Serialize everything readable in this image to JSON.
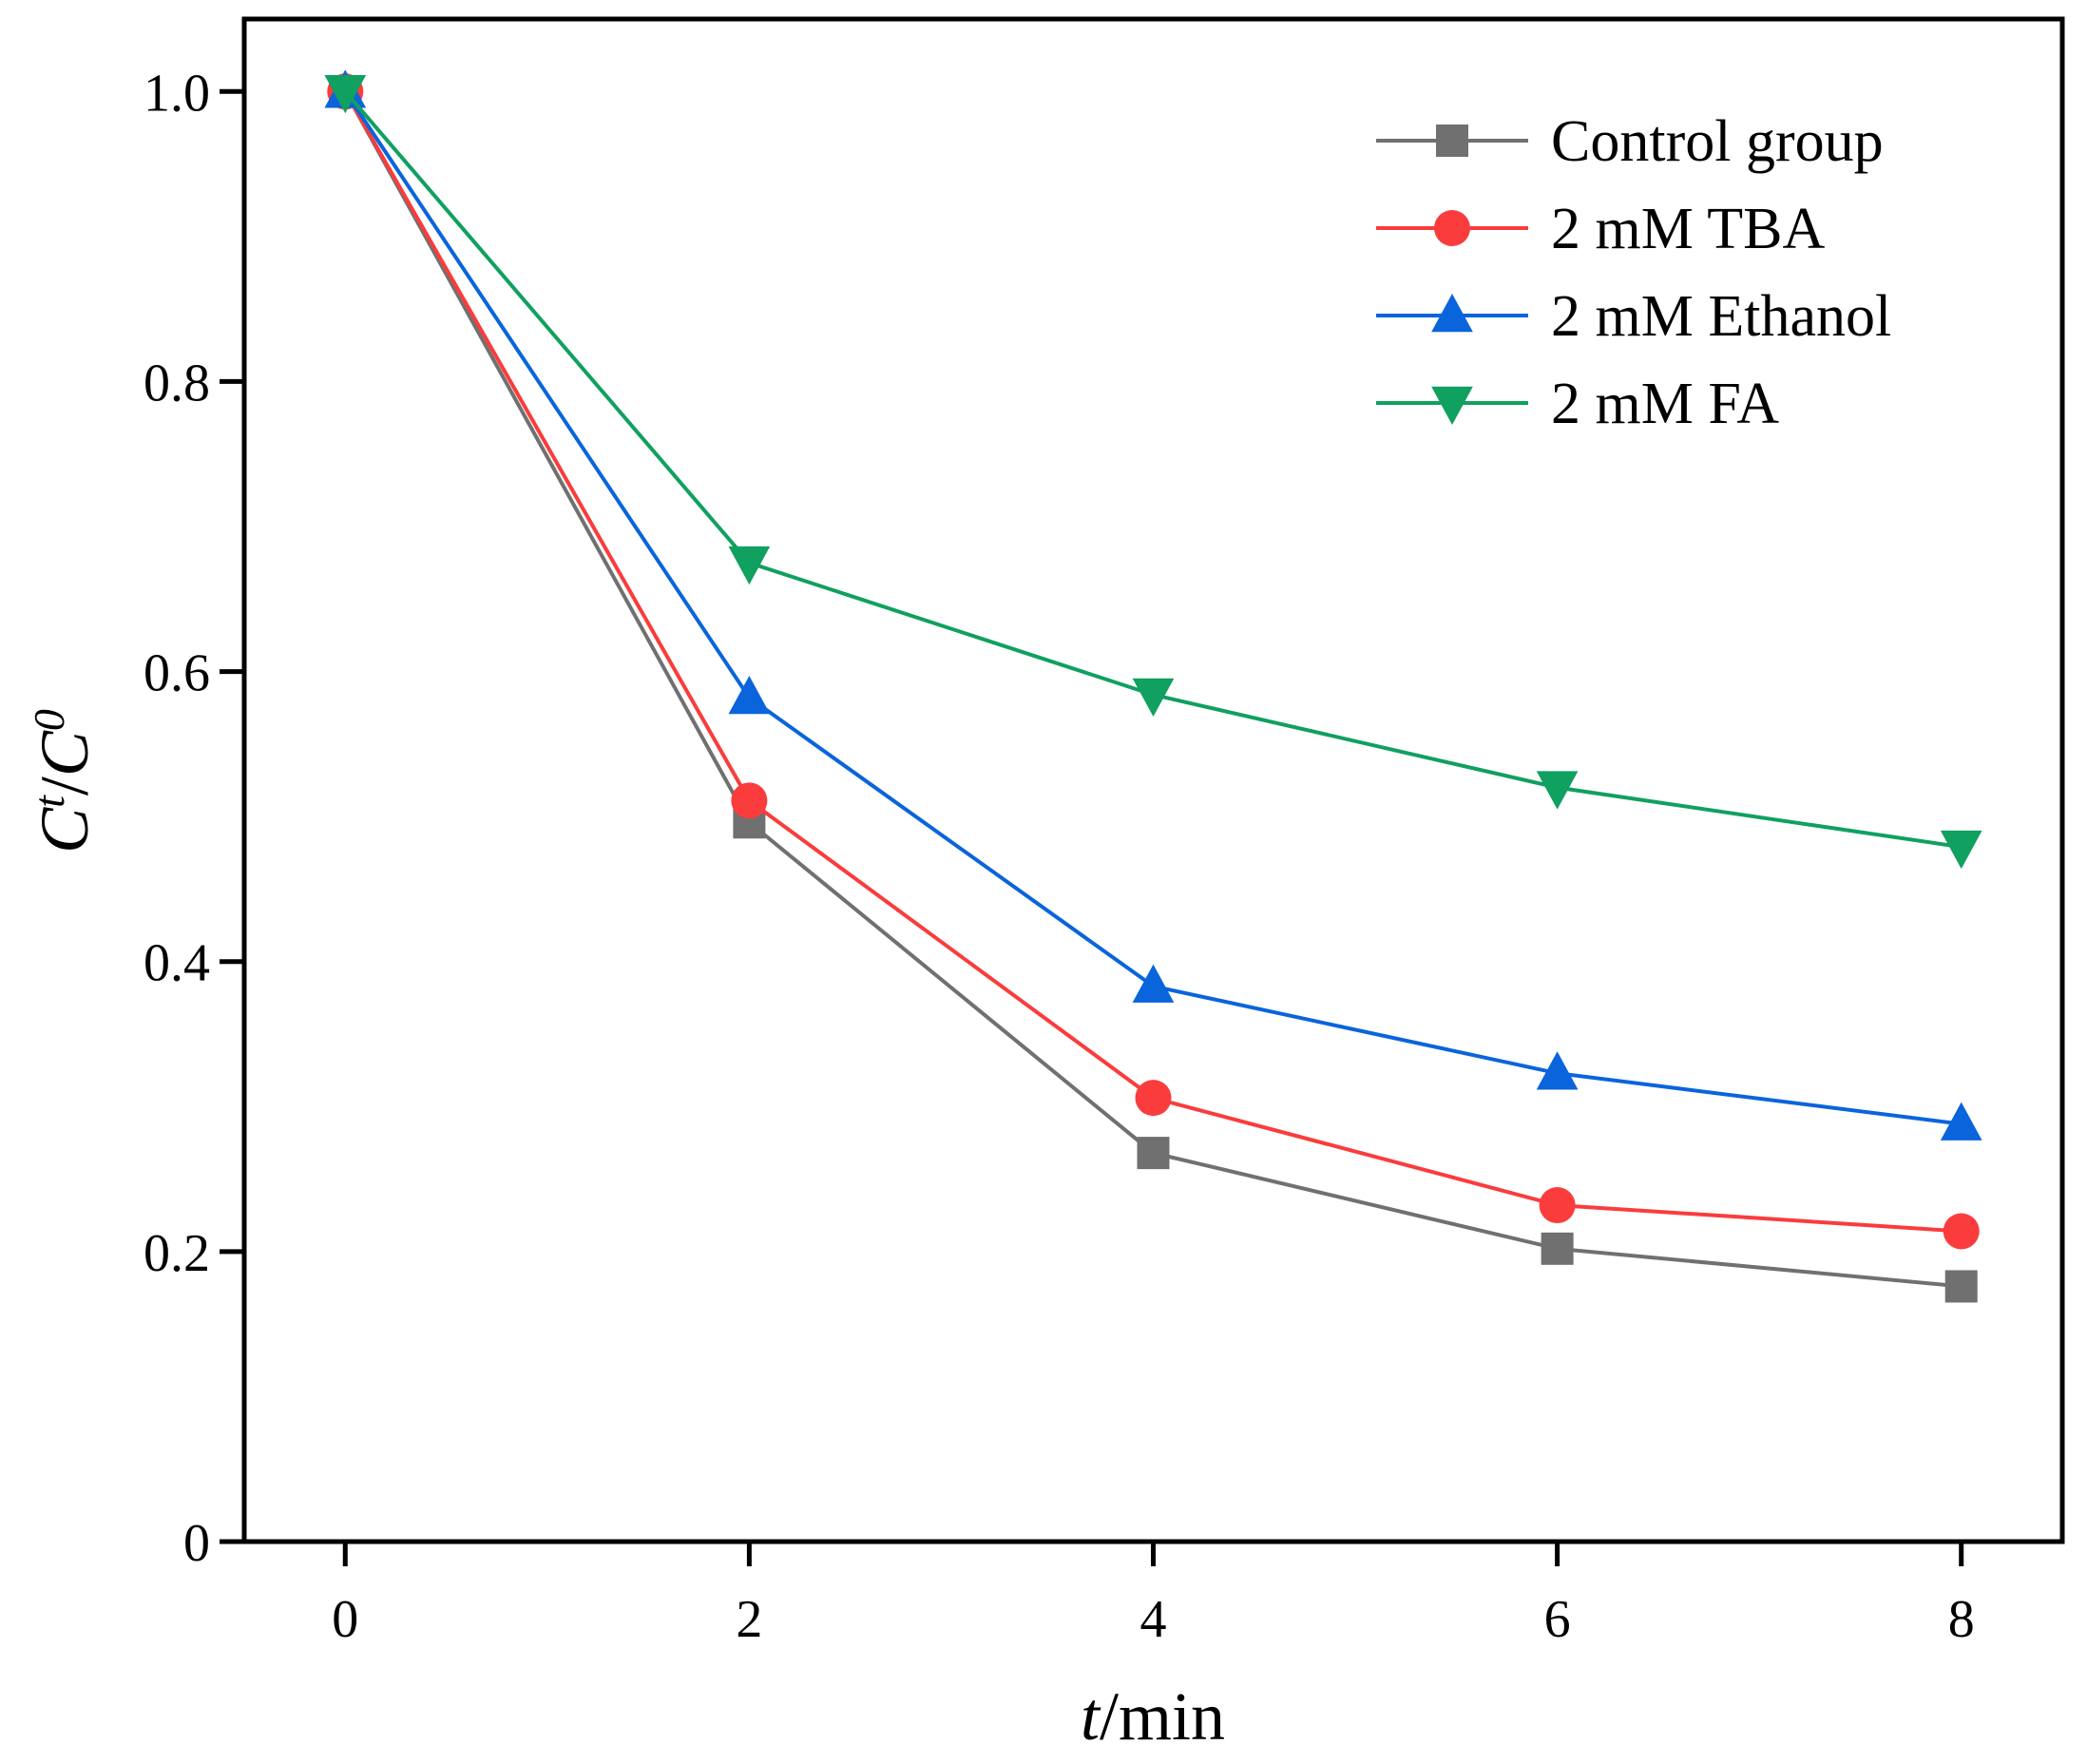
{
  "chart_data": {
    "type": "line",
    "xlabel": {
      "italic": "t",
      "rest": "/min"
    },
    "ylabel": {
      "main1": "C",
      "sup1": "t",
      "sep": "/",
      "main2": "C",
      "sup2": "0"
    },
    "xlim": [
      -0.5,
      8.5
    ],
    "ylim": [
      0,
      1.05
    ],
    "xticks": [
      0,
      2,
      4,
      6,
      8
    ],
    "xtick_labels": [
      "0",
      "2",
      "4",
      "6",
      "8"
    ],
    "yticks": [
      0,
      0.2,
      0.4,
      0.6,
      0.8,
      1.0
    ],
    "ytick_labels": [
      "0",
      "0.2",
      "0.4",
      "0.6",
      "0.8",
      "1.0"
    ],
    "grid": false,
    "legend_position": "top-right",
    "x": [
      0,
      2,
      4,
      6,
      8
    ],
    "series": [
      {
        "name": "Control group",
        "values": [
          1.0,
          0.496,
          0.268,
          0.202,
          0.176
        ],
        "color": "#707070",
        "marker": "square"
      },
      {
        "name": "2 mM TBA",
        "values": [
          1.0,
          0.511,
          0.306,
          0.232,
          0.214
        ],
        "color": "#fa3c3c",
        "marker": "circle"
      },
      {
        "name": "2 mM Ethanol",
        "values": [
          1.0,
          0.582,
          0.383,
          0.323,
          0.288
        ],
        "color": "#0a64dc",
        "marker": "triangle-up"
      },
      {
        "name": "2 mM FA",
        "values": [
          1.0,
          0.675,
          0.584,
          0.52,
          0.479
        ],
        "color": "#10a060",
        "marker": "triangle-down"
      }
    ]
  }
}
